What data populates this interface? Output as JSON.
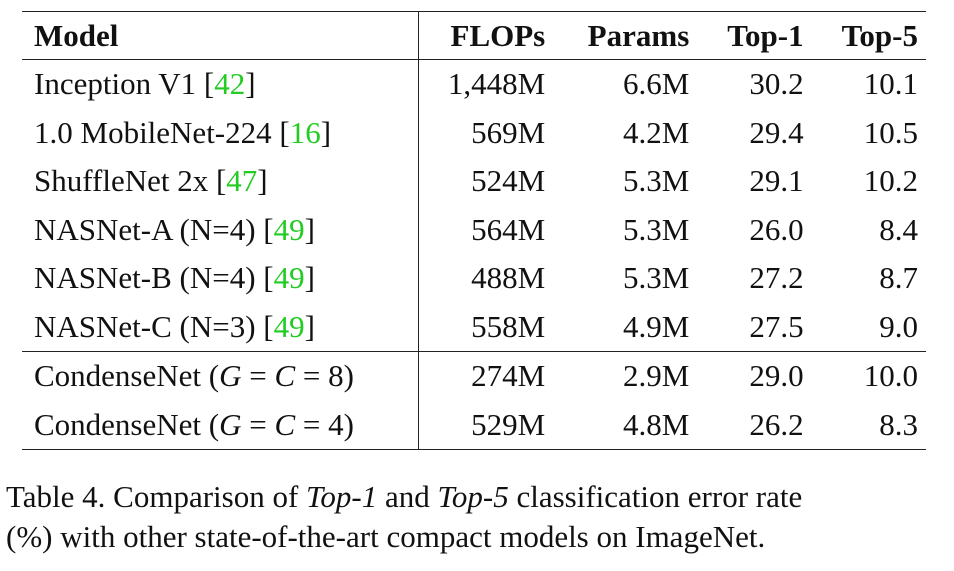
{
  "table": {
    "headers": {
      "model": "Model",
      "flops": "FLOPs",
      "params": "Params",
      "top1": "Top-1",
      "top5": "Top-5"
    },
    "rows": [
      {
        "name": "Inception V1 ",
        "cite_open": "[",
        "cite": "42",
        "cite_close": "]",
        "flops": "1,448M",
        "params": "6.6M",
        "top1": "30.2",
        "top5": "10.1"
      },
      {
        "name": "1.0 MobileNet-224 ",
        "cite_open": "[",
        "cite": "16",
        "cite_close": "]",
        "flops": "569M",
        "params": "4.2M",
        "top1": "29.4",
        "top5": "10.5"
      },
      {
        "name": "ShuffleNet 2x ",
        "cite_open": "[",
        "cite": "47",
        "cite_close": "]",
        "flops": "524M",
        "params": "5.3M",
        "top1": "29.1",
        "top5": "10.2"
      },
      {
        "name": "NASNet-A (N=4) ",
        "cite_open": "[",
        "cite": "49",
        "cite_close": "]",
        "flops": "564M",
        "params": "5.3M",
        "top1": "26.0",
        "top5": "8.4"
      },
      {
        "name": "NASNet-B (N=4) ",
        "cite_open": "[",
        "cite": "49",
        "cite_close": "]",
        "flops": "488M",
        "params": "5.3M",
        "top1": "27.2",
        "top5": "8.7"
      },
      {
        "name": "NASNet-C (N=3) ",
        "cite_open": "[",
        "cite": "49",
        "cite_close": "]",
        "flops": "558M",
        "params": "4.9M",
        "top1": "27.5",
        "top5": "9.0"
      }
    ],
    "ours": [
      {
        "name_prefix": "CondenseNet (",
        "g": "G",
        "eq1": " = ",
        "c": "C",
        "eq2": " = ",
        "val": "8",
        "close": ")",
        "flops": "274M",
        "params": "2.9M",
        "top1": "29.0",
        "top5": "10.0"
      },
      {
        "name_prefix": "CondenseNet (",
        "g": "G",
        "eq1": " = ",
        "c": "C",
        "eq2": " = ",
        "val": "4",
        "close": ")",
        "flops": "529M",
        "params": "4.8M",
        "top1": "26.2",
        "top5": "8.3"
      }
    ]
  },
  "caption": {
    "prefix": "Table 4. Comparison of ",
    "term1": "Top-1",
    "middle": " and ",
    "term2": "Top-5",
    "suffix_line1": " classification error rate",
    "line2": "(%) with other state-of-the-art compact models on ImageNet."
  },
  "colors": {
    "citation": "#22cc22",
    "text": "#111111",
    "rule": "#222222"
  }
}
